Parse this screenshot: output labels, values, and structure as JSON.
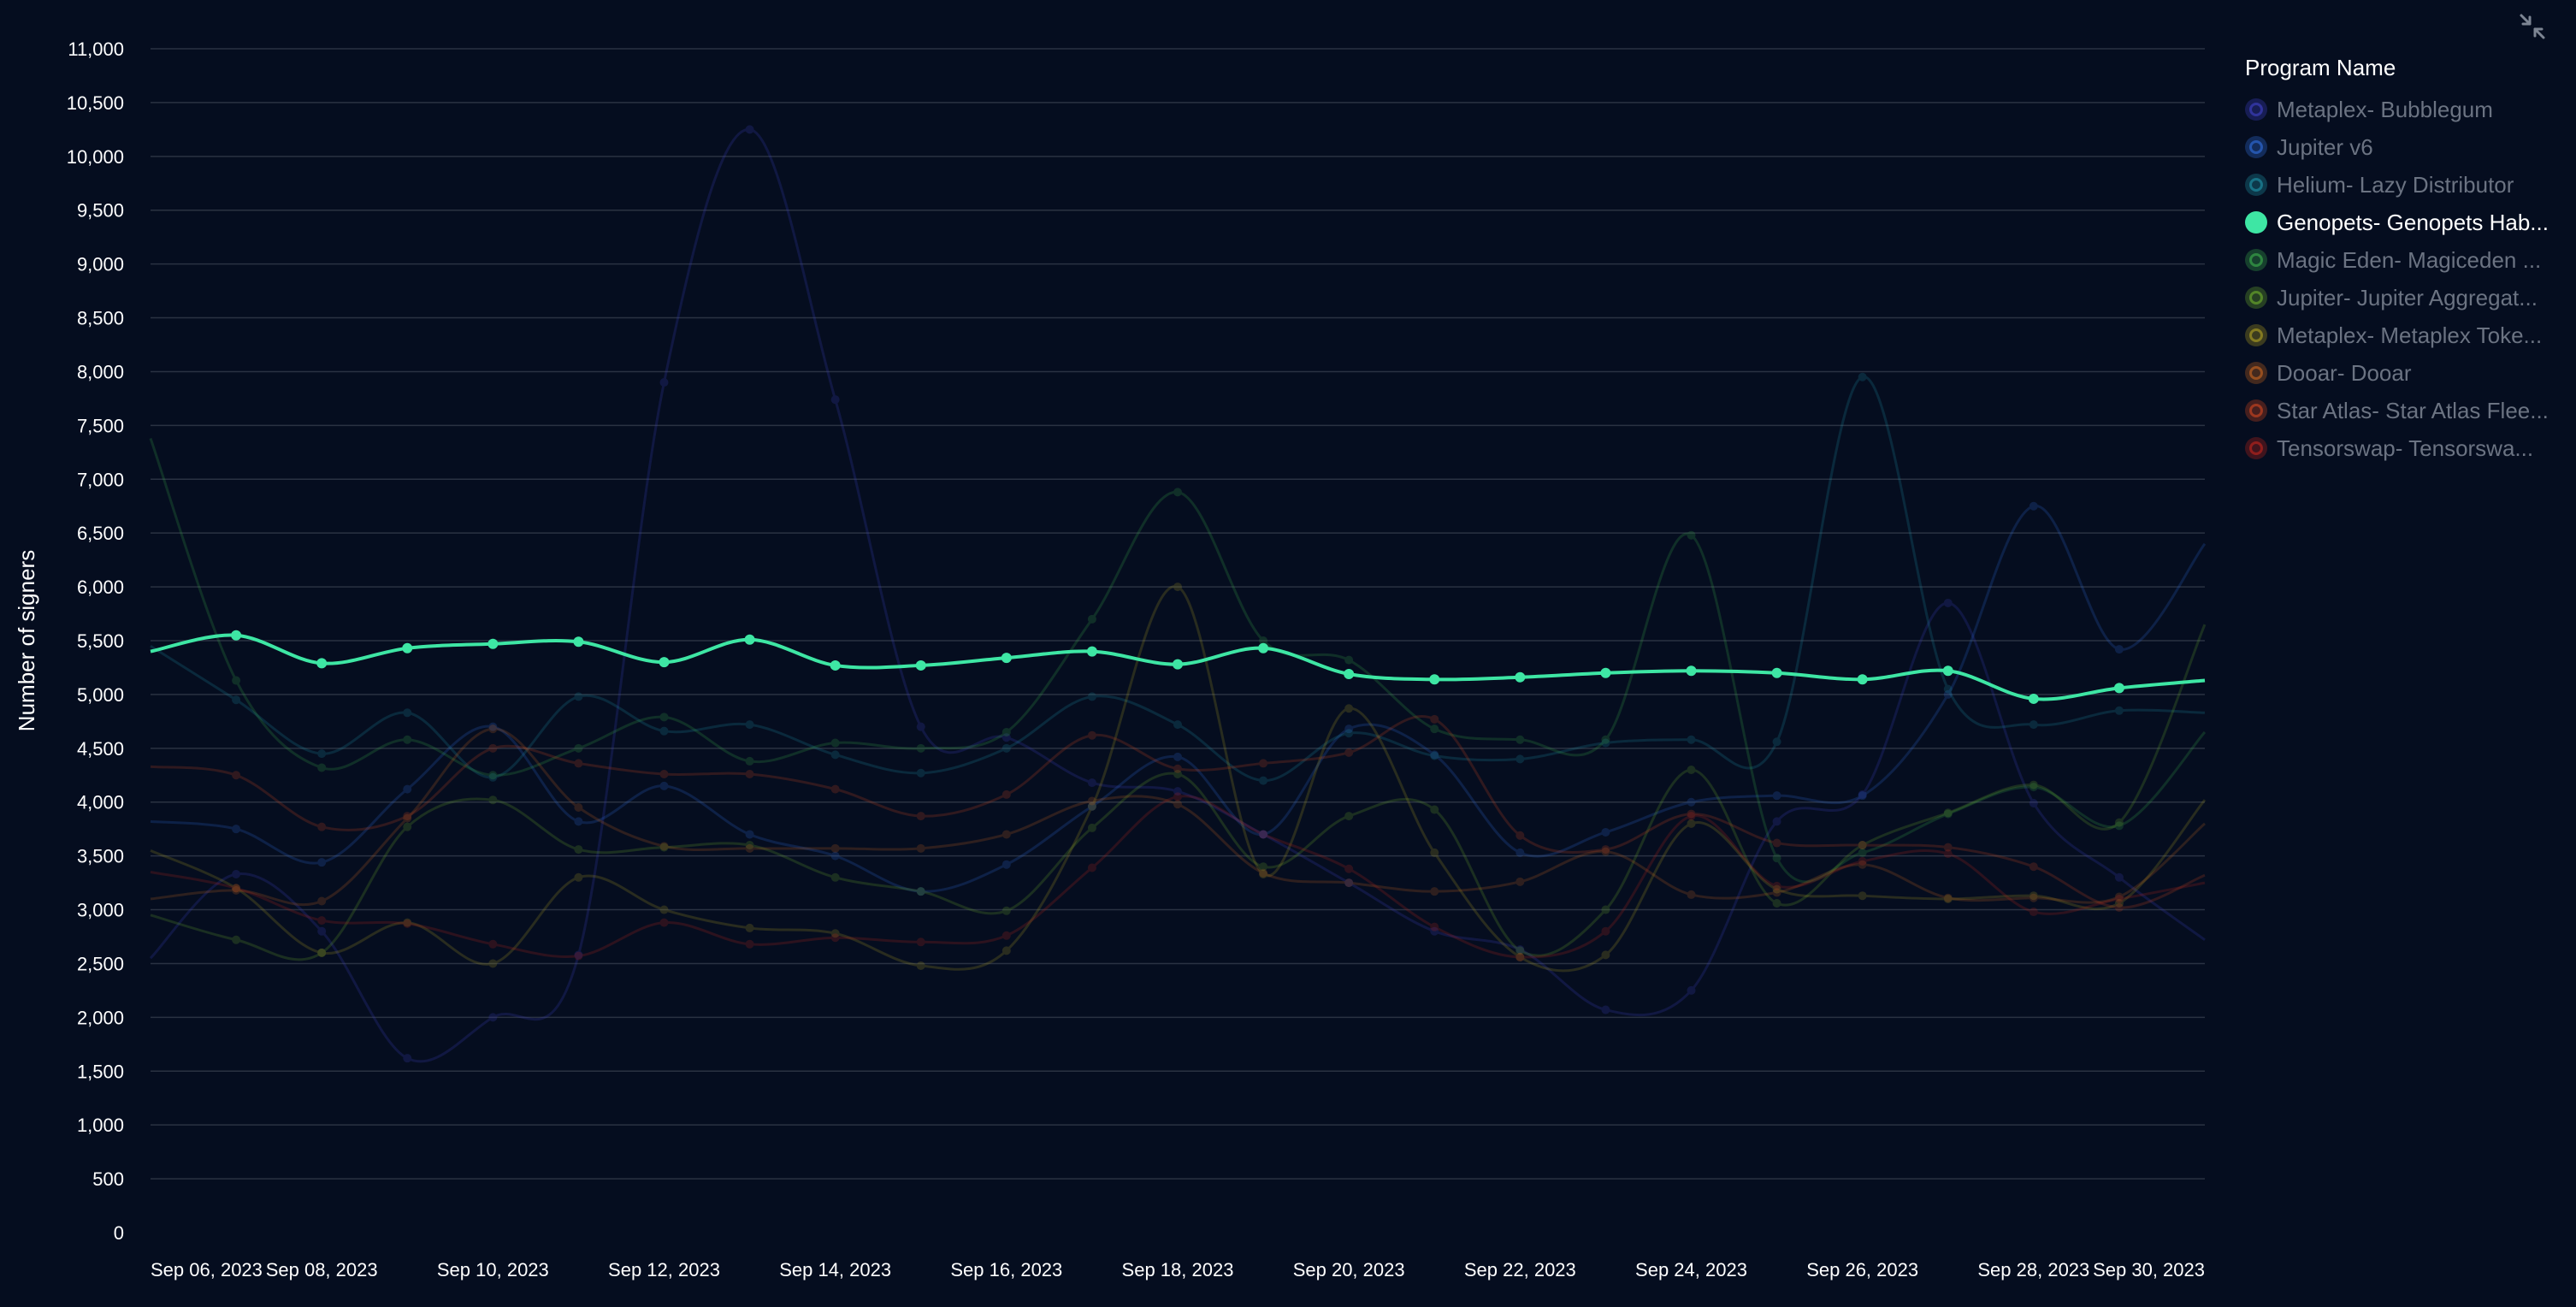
{
  "ui": {
    "collapse_icon": "collapse-arrows-icon"
  },
  "chart_data": {
    "type": "line",
    "ylabel": "Number of signers",
    "xlabel": "",
    "ylim": [
      0,
      11000
    ],
    "yticks": [
      0,
      500,
      1000,
      1500,
      2000,
      2500,
      3000,
      3500,
      4000,
      4500,
      5000,
      5500,
      6000,
      6500,
      7000,
      7500,
      8000,
      8500,
      9000,
      9500,
      10000,
      10500,
      11000
    ],
    "ytick_labels": [
      "0",
      "500",
      "1,000",
      "1,500",
      "2,000",
      "2,500",
      "3,000",
      "3,500",
      "4,000",
      "4,500",
      "5,000",
      "5,500",
      "6,000",
      "6,500",
      "7,000",
      "7,500",
      "8,000",
      "8,500",
      "9,000",
      "9,500",
      "10,000",
      "10,500",
      "11,000"
    ],
    "x": [
      "2023-09-06",
      "2023-09-07",
      "2023-09-08",
      "2023-09-09",
      "2023-09-10",
      "2023-09-11",
      "2023-09-12",
      "2023-09-13",
      "2023-09-14",
      "2023-09-15",
      "2023-09-16",
      "2023-09-17",
      "2023-09-18",
      "2023-09-19",
      "2023-09-20",
      "2023-09-21",
      "2023-09-22",
      "2023-09-23",
      "2023-09-24",
      "2023-09-25",
      "2023-09-26",
      "2023-09-27",
      "2023-09-28",
      "2023-09-29",
      "2023-09-30"
    ],
    "xticks": [
      {
        "date": "2023-09-06",
        "label": "Sep 06, 2023"
      },
      {
        "date": "2023-09-08",
        "label": "Sep 08, 2023"
      },
      {
        "date": "2023-09-10",
        "label": "Sep 10, 2023"
      },
      {
        "date": "2023-09-12",
        "label": "Sep 12, 2023"
      },
      {
        "date": "2023-09-14",
        "label": "Sep 14, 2023"
      },
      {
        "date": "2023-09-16",
        "label": "Sep 16, 2023"
      },
      {
        "date": "2023-09-18",
        "label": "Sep 18, 2023"
      },
      {
        "date": "2023-09-20",
        "label": "Sep 20, 2023"
      },
      {
        "date": "2023-09-22",
        "label": "Sep 22, 2023"
      },
      {
        "date": "2023-09-24",
        "label": "Sep 24, 2023"
      },
      {
        "date": "2023-09-26",
        "label": "Sep 26, 2023"
      },
      {
        "date": "2023-09-28",
        "label": "Sep 28, 2023"
      },
      {
        "date": "2023-09-30",
        "label": "Sep 30, 2023"
      }
    ],
    "grid": true,
    "legend": {
      "title": "Program Name",
      "placement": "right",
      "active_series": "Genopets- Genopets Habitat"
    },
    "series": [
      {
        "name": "Metaplex- Bubblegum",
        "legend_label": "Metaplex- Bubblegum",
        "color": "#3d3fbf",
        "values": [
          2550,
          3330,
          2800,
          1620,
          2000,
          2580,
          7900,
          10250,
          7740,
          4700,
          4600,
          4180,
          4100,
          3700,
          3250,
          2800,
          2630,
          2070,
          2250,
          3820,
          4070,
          5850,
          3990,
          3300,
          2720
        ]
      },
      {
        "name": "Jupiter v6",
        "legend_label": "Jupiter v6",
        "color": "#2f6bd6",
        "values": [
          3820,
          3750,
          3440,
          4120,
          4700,
          3820,
          4150,
          3700,
          3500,
          3170,
          3420,
          3960,
          4420,
          3700,
          4680,
          4440,
          3530,
          3720,
          4000,
          4060,
          4060,
          5000,
          6750,
          5420,
          6400
        ]
      },
      {
        "name": "Helium- Lazy Distributor",
        "legend_label": "Helium- Lazy Distributor",
        "color": "#1e8fa3",
        "values": [
          5450,
          4950,
          4450,
          4830,
          4230,
          4980,
          4660,
          4720,
          4440,
          4270,
          4500,
          4980,
          4720,
          4200,
          4640,
          4430,
          4400,
          4550,
          4580,
          4560,
          7950,
          5050,
          4720,
          4850,
          4830
        ]
      },
      {
        "name": "Genopets- Genopets Habitat",
        "legend_label": "Genopets- Genopets Hab...",
        "color": "#3ee6a4",
        "values": [
          5400,
          5550,
          5290,
          5430,
          5470,
          5490,
          5300,
          5510,
          5270,
          5270,
          5340,
          5400,
          5280,
          5430,
          5190,
          5140,
          5160,
          5200,
          5220,
          5200,
          5140,
          5220,
          4960,
          5060,
          5130
        ]
      },
      {
        "name": "Magic Eden- Magiceden",
        "legend_label": "Magic Eden- Magiceden ...",
        "color": "#3aa84a",
        "values": [
          7380,
          5130,
          4320,
          4580,
          4250,
          4500,
          4790,
          4380,
          4550,
          4500,
          4650,
          5700,
          6880,
          5500,
          5320,
          4680,
          4580,
          4580,
          6480,
          3480,
          3530,
          3890,
          4140,
          3780,
          4650
        ]
      },
      {
        "name": "Jupiter- Jupiter Aggregator",
        "legend_label": "Jupiter- Jupiter Aggregat...",
        "color": "#6aa82c",
        "values": [
          2950,
          2720,
          2600,
          3770,
          4020,
          3560,
          3580,
          3600,
          3300,
          3170,
          2990,
          3760,
          4260,
          3400,
          3870,
          3930,
          2620,
          3000,
          4300,
          3060,
          3600,
          3900,
          4160,
          3810,
          5650
        ]
      },
      {
        "name": "Metaplex- Metaplex Token Metadata",
        "legend_label": "Metaplex- Metaplex Toke...",
        "color": "#a89a22",
        "values": [
          3550,
          3200,
          2600,
          2880,
          2500,
          3300,
          3000,
          2830,
          2780,
          2480,
          2620,
          3960,
          6000,
          3330,
          4870,
          3530,
          2560,
          2580,
          3800,
          3190,
          3130,
          3100,
          3130,
          3060,
          4020
        ]
      },
      {
        "name": "Dooar- Dooar",
        "legend_label": "Dooar- Dooar",
        "color": "#c0621f",
        "values": [
          3100,
          3180,
          3080,
          3850,
          4680,
          3950,
          3590,
          3570,
          3570,
          3570,
          3700,
          4010,
          3980,
          3340,
          3250,
          3170,
          3260,
          3540,
          3140,
          3160,
          3420,
          3110,
          3110,
          3120,
          3800
        ]
      },
      {
        "name": "Star Atlas- Star Atlas Fleet",
        "legend_label": "Star Atlas- Star Atlas Flee...",
        "color": "#c8441f",
        "values": [
          4330,
          4250,
          3770,
          3870,
          4500,
          4360,
          4260,
          4260,
          4120,
          3870,
          4070,
          4620,
          4310,
          4360,
          4460,
          4770,
          3690,
          3560,
          3890,
          3620,
          3600,
          3580,
          3400,
          3020,
          3320
        ]
      },
      {
        "name": "Tensorswap- Tensorswap",
        "legend_label": "Tensorswap- Tensorswa...",
        "color": "#b8241c",
        "values": [
          3350,
          3200,
          2900,
          2870,
          2680,
          2570,
          2880,
          2680,
          2740,
          2700,
          2760,
          3390,
          4050,
          3700,
          3380,
          2840,
          2560,
          2800,
          3870,
          3220,
          3450,
          3520,
          2980,
          3100,
          3250
        ]
      }
    ]
  }
}
